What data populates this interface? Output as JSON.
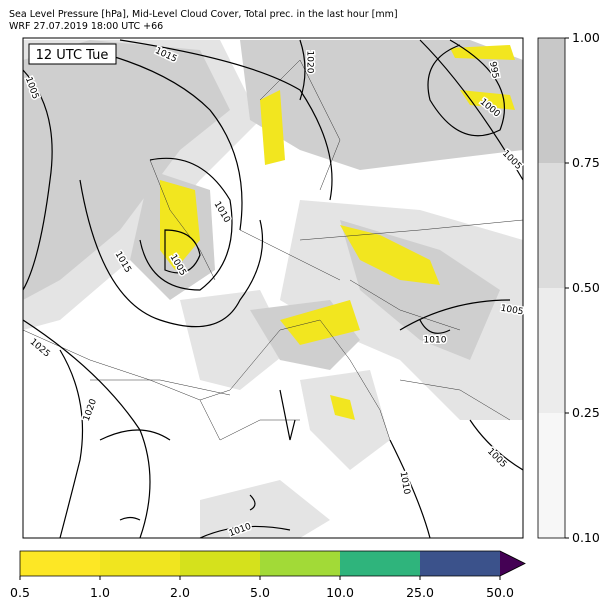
{
  "header": {
    "title": "Sea Level Pressure [hPa], Mid-Level Cloud Cover, Total prec. in the last hour [mm]",
    "subtitle": "WRF 27.07.2019 18:00 UTC +66"
  },
  "map": {
    "time_label": "12 UTC Tue",
    "isobar_labels": [
      "1005",
      "1015",
      "1020",
      "995",
      "1000",
      "1005",
      "1010",
      "1015",
      "1005",
      "1025",
      "1020",
      "1005",
      "1010",
      "1010",
      "1005",
      "1010"
    ]
  },
  "cloud_colorbar": {
    "ticks": [
      "1.00",
      "0.75",
      "0.50",
      "0.25",
      "0.10"
    ]
  },
  "precip_colorbar": {
    "ticks": [
      "0.5",
      "1.0",
      "2.0",
      "5.0",
      "10.0",
      "25.0",
      "50.0"
    ]
  }
}
